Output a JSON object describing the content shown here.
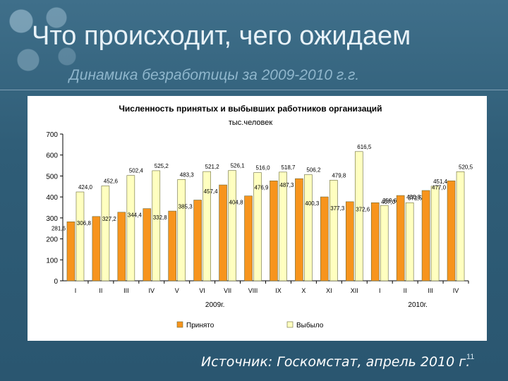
{
  "slide": {
    "title": "Что происходит, чего ожидаем",
    "subtitle": "Динамика безработицы за 2009-2010 г.г.",
    "source": "Источник: Госкомстат, апрель 2010 г.",
    "page_number": "11"
  },
  "chart_data": {
    "type": "bar",
    "title": "Численность принятых и выбывших работников организаций",
    "subtitle": "тыс.человек",
    "categories": [
      "I",
      "II",
      "III",
      "IV",
      "V",
      "VI",
      "VII",
      "VIII",
      "IX",
      "X",
      "XI",
      "XII",
      "I",
      "II",
      "III",
      "IV"
    ],
    "groups": [
      {
        "label": "2009г.",
        "from": 0,
        "to": 11
      },
      {
        "label": "2010г.",
        "from": 12,
        "to": 15
      }
    ],
    "series": [
      {
        "name": "Принято",
        "color": "#f7941d",
        "values": [
          281.6,
          306.8,
          327.2,
          344.4,
          332.8,
          385.3,
          457.4,
          404.8,
          476.9,
          487.3,
          400.3,
          377.3,
          372.6,
          407.0,
          430.8,
          477.0
        ],
        "labels": [
          "281,6",
          "306,8",
          "327,2",
          "344,4",
          "332,8",
          "385,3",
          "457,4",
          "404,8",
          "476,9",
          "487,3",
          "400,3",
          "377,3",
          "372,6",
          "407,0",
          "430,8",
          "477,0"
        ]
      },
      {
        "name": "Выбыло",
        "color": "#ffffc0",
        "values": [
          424.0,
          452.6,
          502.4,
          525.2,
          483.3,
          521.2,
          526.1,
          516.0,
          518.7,
          506.2,
          479.8,
          616.5,
          359.6,
          372.5,
          451.4,
          520.5
        ],
        "labels": [
          "424,0",
          "452,6",
          "502,4",
          "525,2",
          "483,3",
          "521,2",
          "526,1",
          "516,0",
          "518,7",
          "506,2",
          "479,8",
          "616,5",
          "359,6",
          "372,5",
          "451,4",
          "520,5"
        ]
      }
    ],
    "ylim": [
      0,
      700
    ],
    "yticks": [
      0,
      100,
      200,
      300,
      400,
      500,
      600,
      700
    ],
    "grid": false,
    "legend": "bottom"
  }
}
